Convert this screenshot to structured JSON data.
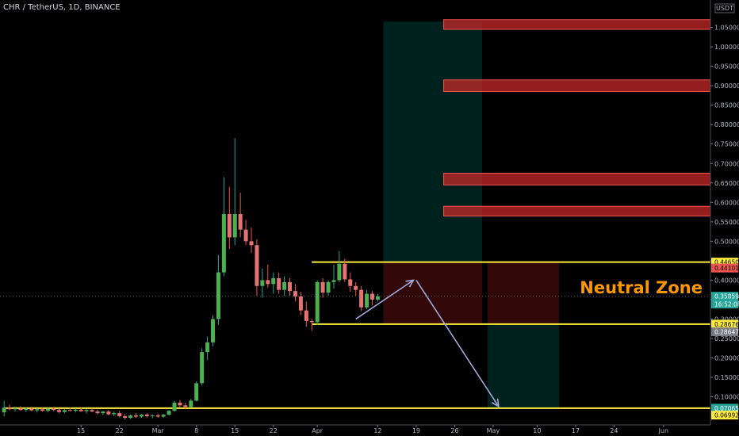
{
  "header": {
    "title": "CHR / TetherUS, 1D, BINANCE"
  },
  "chart_data": {
    "type": "candlestick",
    "symbol": "CHR / TetherUS",
    "interval": "1D",
    "exchange": "BINANCE",
    "currency_label": "USDT",
    "y_ticks": [
      0.1,
      0.15,
      0.2,
      0.25,
      0.3,
      0.35,
      0.4,
      0.45,
      0.5,
      0.55,
      0.6,
      0.65,
      0.7,
      0.75,
      0.8,
      0.85,
      0.9,
      0.95,
      1.0,
      1.05
    ],
    "y_tick_labels": [
      "0.10000",
      "0.15000",
      "0.20000",
      "0.25000",
      "0.30000",
      "0.35000",
      "0.40000",
      "0.45000",
      "0.50000",
      "0.55000",
      "0.60000",
      "0.65000",
      "0.70000",
      "0.75000",
      "0.80000",
      "0.85000",
      "0.90000",
      "0.95000",
      "1.00000",
      "1.05000"
    ],
    "ylim": [
      0.0,
      1.08
    ],
    "x_tick_labels": [
      "15",
      "22",
      "Mar",
      "8",
      "15",
      "22",
      "Apr",
      "12",
      "19",
      "26",
      "May",
      "10",
      "17",
      "24",
      "Jun"
    ],
    "x_tick_days": [
      -17,
      -10,
      -3,
      4,
      11,
      18,
      26,
      37,
      44,
      51,
      58,
      66,
      73,
      80,
      89
    ],
    "xlim_days": [
      -31,
      91
    ],
    "price_tags": [
      {
        "label": "0.44650",
        "value": 0.4465,
        "bg": "#ffeb3b",
        "fg": "#000000"
      },
      {
        "label": "0.44101",
        "value": 0.431,
        "bg": "#ef5350",
        "fg": "#000000"
      },
      {
        "label": "0.35859",
        "value": 0.3586,
        "bg": "#26a69a",
        "fg": "#ffffff"
      },
      {
        "label": "16:52:08",
        "value": 0.3386,
        "bg": "#26a69a",
        "fg": "#ffffff"
      },
      {
        "label": "0.28676",
        "value": 0.2868,
        "bg": "#ffeb3b",
        "fg": "#000000"
      },
      {
        "label": "0.28647",
        "value": 0.267,
        "bg": "#787b86",
        "fg": "#ffffff"
      },
      {
        "label": "0.07065",
        "value": 0.0707,
        "bg": "#26a69a",
        "fg": "#ffffff"
      },
      {
        "label": "0.06992",
        "value": 0.0529,
        "bg": "#ffeb3b",
        "fg": "#000000"
      }
    ],
    "horizontal_lines": [
      {
        "value": 0.4465,
        "from_day": 25,
        "color": "#ffeb3b"
      },
      {
        "value": 0.2868,
        "from_day": 25,
        "color": "#ffeb3b"
      },
      {
        "value": 0.0707,
        "from_day": -31,
        "color": "#ffeb3b"
      }
    ],
    "resistance_zones": [
      {
        "from_day": 49,
        "low": 1.045,
        "high": 1.07
      },
      {
        "from_day": 49,
        "low": 0.885,
        "high": 0.915
      },
      {
        "from_day": 49,
        "low": 0.645,
        "high": 0.675
      },
      {
        "from_day": 49,
        "low": 0.565,
        "high": 0.59
      }
    ],
    "position_boxes": [
      {
        "kind": "profit",
        "from_day": 38,
        "to_day": 56,
        "low": 0.4465,
        "high": 1.065
      },
      {
        "kind": "loss",
        "from_day": 38,
        "to_day": 56,
        "low": 0.2868,
        "high": 0.4465
      },
      {
        "kind": "loss",
        "from_day": 57,
        "to_day": 70,
        "low": 0.2868,
        "high": 0.4465
      },
      {
        "kind": "profit",
        "from_day": 57,
        "to_day": 70,
        "low": 0.0707,
        "high": 0.2868
      }
    ],
    "arrows": [
      {
        "from_day": 33,
        "from_value": 0.3,
        "to_day": 43.5,
        "to_value": 0.4
      },
      {
        "from_day": 44,
        "from_value": 0.4,
        "to_day": 59,
        "to_value": 0.075
      }
    ],
    "annotation": {
      "text": "Neutral Zone",
      "color": "#ff9800"
    },
    "current_price": 0.35859,
    "candles": [
      {
        "d": -31,
        "o": 0.06,
        "h": 0.09,
        "l": 0.05,
        "c": 0.072
      },
      {
        "d": -30,
        "o": 0.072,
        "h": 0.08,
        "l": 0.065,
        "c": 0.068
      },
      {
        "d": -29,
        "o": 0.068,
        "h": 0.075,
        "l": 0.062,
        "c": 0.07
      },
      {
        "d": -28,
        "o": 0.07,
        "h": 0.076,
        "l": 0.064,
        "c": 0.066
      },
      {
        "d": -27,
        "o": 0.066,
        "h": 0.072,
        "l": 0.061,
        "c": 0.069
      },
      {
        "d": -26,
        "o": 0.069,
        "h": 0.074,
        "l": 0.063,
        "c": 0.065
      },
      {
        "d": -25,
        "o": 0.065,
        "h": 0.071,
        "l": 0.06,
        "c": 0.068
      },
      {
        "d": -24,
        "o": 0.068,
        "h": 0.073,
        "l": 0.062,
        "c": 0.064
      },
      {
        "d": -23,
        "o": 0.064,
        "h": 0.072,
        "l": 0.06,
        "c": 0.069
      },
      {
        "d": -22,
        "o": 0.069,
        "h": 0.074,
        "l": 0.063,
        "c": 0.066
      },
      {
        "d": -21,
        "o": 0.066,
        "h": 0.07,
        "l": 0.058,
        "c": 0.061
      },
      {
        "d": -20,
        "o": 0.061,
        "h": 0.068,
        "l": 0.058,
        "c": 0.066
      },
      {
        "d": -19,
        "o": 0.066,
        "h": 0.072,
        "l": 0.062,
        "c": 0.064
      },
      {
        "d": -18,
        "o": 0.064,
        "h": 0.07,
        "l": 0.06,
        "c": 0.067
      },
      {
        "d": -17,
        "o": 0.067,
        "h": 0.072,
        "l": 0.061,
        "c": 0.063
      },
      {
        "d": -16,
        "o": 0.063,
        "h": 0.069,
        "l": 0.058,
        "c": 0.066
      },
      {
        "d": -15,
        "o": 0.066,
        "h": 0.071,
        "l": 0.06,
        "c": 0.062
      },
      {
        "d": -14,
        "o": 0.062,
        "h": 0.067,
        "l": 0.055,
        "c": 0.058
      },
      {
        "d": -13,
        "o": 0.058,
        "h": 0.064,
        "l": 0.054,
        "c": 0.062
      },
      {
        "d": -12,
        "o": 0.062,
        "h": 0.066,
        "l": 0.052,
        "c": 0.055
      },
      {
        "d": -11,
        "o": 0.055,
        "h": 0.062,
        "l": 0.05,
        "c": 0.058
      },
      {
        "d": -10,
        "o": 0.058,
        "h": 0.063,
        "l": 0.048,
        "c": 0.05
      },
      {
        "d": -9,
        "o": 0.05,
        "h": 0.056,
        "l": 0.042,
        "c": 0.046
      },
      {
        "d": -8,
        "o": 0.046,
        "h": 0.054,
        "l": 0.043,
        "c": 0.052
      },
      {
        "d": -7,
        "o": 0.052,
        "h": 0.058,
        "l": 0.046,
        "c": 0.049
      },
      {
        "d": -6,
        "o": 0.049,
        "h": 0.056,
        "l": 0.046,
        "c": 0.054
      },
      {
        "d": -5,
        "o": 0.054,
        "h": 0.058,
        "l": 0.047,
        "c": 0.05
      },
      {
        "d": -4,
        "o": 0.05,
        "h": 0.055,
        "l": 0.045,
        "c": 0.052
      },
      {
        "d": -3,
        "o": 0.052,
        "h": 0.057,
        "l": 0.046,
        "c": 0.049
      },
      {
        "d": -2,
        "o": 0.049,
        "h": 0.056,
        "l": 0.046,
        "c": 0.054
      },
      {
        "d": -1,
        "o": 0.054,
        "h": 0.066,
        "l": 0.052,
        "c": 0.064
      },
      {
        "d": 0,
        "o": 0.064,
        "h": 0.09,
        "l": 0.062,
        "c": 0.085
      },
      {
        "d": 1,
        "o": 0.085,
        "h": 0.092,
        "l": 0.072,
        "c": 0.078
      },
      {
        "d": 2,
        "o": 0.078,
        "h": 0.085,
        "l": 0.07,
        "c": 0.074
      },
      {
        "d": 3,
        "o": 0.074,
        "h": 0.095,
        "l": 0.072,
        "c": 0.09
      },
      {
        "d": 4,
        "o": 0.09,
        "h": 0.14,
        "l": 0.088,
        "c": 0.135
      },
      {
        "d": 5,
        "o": 0.135,
        "h": 0.225,
        "l": 0.13,
        "c": 0.215
      },
      {
        "d": 6,
        "o": 0.215,
        "h": 0.255,
        "l": 0.195,
        "c": 0.24
      },
      {
        "d": 7,
        "o": 0.24,
        "h": 0.31,
        "l": 0.23,
        "c": 0.3
      },
      {
        "d": 8,
        "o": 0.3,
        "h": 0.465,
        "l": 0.285,
        "c": 0.42
      },
      {
        "d": 9,
        "o": 0.42,
        "h": 0.665,
        "l": 0.41,
        "c": 0.57
      },
      {
        "d": 10,
        "o": 0.57,
        "h": 0.64,
        "l": 0.48,
        "c": 0.51
      },
      {
        "d": 11,
        "o": 0.51,
        "h": 0.765,
        "l": 0.49,
        "c": 0.57
      },
      {
        "d": 12,
        "o": 0.57,
        "h": 0.625,
        "l": 0.51,
        "c": 0.53
      },
      {
        "d": 13,
        "o": 0.53,
        "h": 0.555,
        "l": 0.49,
        "c": 0.5
      },
      {
        "d": 14,
        "o": 0.5,
        "h": 0.535,
        "l": 0.47,
        "c": 0.49
      },
      {
        "d": 15,
        "o": 0.49,
        "h": 0.505,
        "l": 0.36,
        "c": 0.385
      },
      {
        "d": 16,
        "o": 0.385,
        "h": 0.43,
        "l": 0.355,
        "c": 0.4
      },
      {
        "d": 17,
        "o": 0.4,
        "h": 0.44,
        "l": 0.38,
        "c": 0.39
      },
      {
        "d": 18,
        "o": 0.39,
        "h": 0.42,
        "l": 0.365,
        "c": 0.405
      },
      {
        "d": 19,
        "o": 0.405,
        "h": 0.42,
        "l": 0.365,
        "c": 0.375
      },
      {
        "d": 20,
        "o": 0.375,
        "h": 0.41,
        "l": 0.36,
        "c": 0.395
      },
      {
        "d": 21,
        "o": 0.395,
        "h": 0.405,
        "l": 0.36,
        "c": 0.372
      },
      {
        "d": 22,
        "o": 0.372,
        "h": 0.39,
        "l": 0.345,
        "c": 0.358
      },
      {
        "d": 23,
        "o": 0.358,
        "h": 0.37,
        "l": 0.31,
        "c": 0.322
      },
      {
        "d": 24,
        "o": 0.322,
        "h": 0.345,
        "l": 0.28,
        "c": 0.295
      },
      {
        "d": 25,
        "o": 0.295,
        "h": 0.3,
        "l": 0.27,
        "c": 0.292
      },
      {
        "d": 26,
        "o": 0.292,
        "h": 0.4,
        "l": 0.285,
        "c": 0.395
      },
      {
        "d": 27,
        "o": 0.395,
        "h": 0.405,
        "l": 0.355,
        "c": 0.368
      },
      {
        "d": 28,
        "o": 0.368,
        "h": 0.4,
        "l": 0.36,
        "c": 0.395
      },
      {
        "d": 29,
        "o": 0.395,
        "h": 0.44,
        "l": 0.378,
        "c": 0.4
      },
      {
        "d": 30,
        "o": 0.4,
        "h": 0.475,
        "l": 0.395,
        "c": 0.442
      },
      {
        "d": 31,
        "o": 0.442,
        "h": 0.455,
        "l": 0.395,
        "c": 0.402
      },
      {
        "d": 32,
        "o": 0.402,
        "h": 0.42,
        "l": 0.37,
        "c": 0.385
      },
      {
        "d": 33,
        "o": 0.385,
        "h": 0.395,
        "l": 0.36,
        "c": 0.375
      },
      {
        "d": 34,
        "o": 0.375,
        "h": 0.385,
        "l": 0.32,
        "c": 0.33
      },
      {
        "d": 35,
        "o": 0.33,
        "h": 0.375,
        "l": 0.325,
        "c": 0.365
      },
      {
        "d": 36,
        "o": 0.365,
        "h": 0.372,
        "l": 0.335,
        "c": 0.35
      },
      {
        "d": 37,
        "o": 0.35,
        "h": 0.365,
        "l": 0.345,
        "c": 0.3586
      }
    ]
  }
}
